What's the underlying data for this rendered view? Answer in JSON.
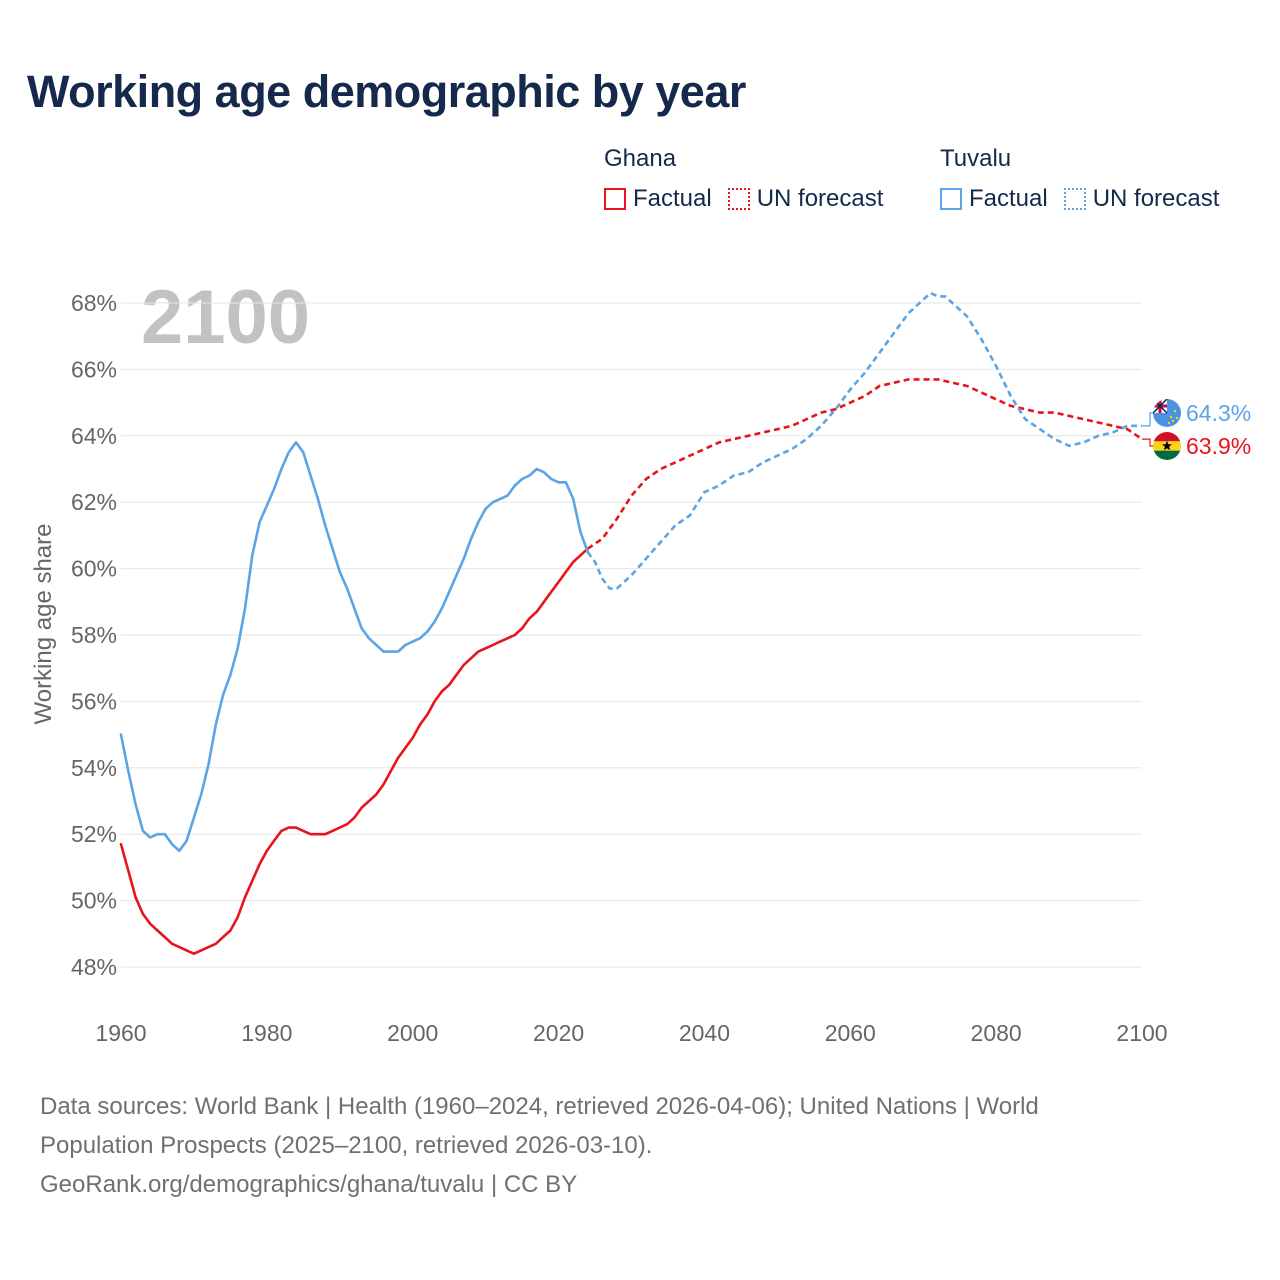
{
  "title": "Working age demographic by year",
  "year_label": "2100",
  "legend": {
    "groups": [
      {
        "country": "Ghana",
        "factual_label": "Factual",
        "forecast_label": "UN forecast",
        "color": "#e8141b"
      },
      {
        "country": "Tuvalu",
        "factual_label": "Factual",
        "forecast_label": "UN forecast",
        "color": "#5ba4e6"
      }
    ]
  },
  "source": {
    "line1": "Data sources: World Bank | Health (1960–2024, retrieved 2026-04-06); United Nations | World",
    "line2": "Population Prospects (2025–2100, retrieved 2026-03-10).",
    "line3": "GeoRank.org/demographics/ghana/tuvalu | CC BY"
  },
  "chart_data": {
    "type": "line",
    "title": "Working age demographic by year",
    "xlabel": "",
    "ylabel": "Working age share",
    "xlim": [
      1960,
      2100
    ],
    "ylim": [
      47,
      69
    ],
    "x_ticks": [
      1960,
      1980,
      2000,
      2020,
      2040,
      2060,
      2080,
      2100
    ],
    "x_tick_labels": [
      "1960",
      "1980",
      "2000",
      "2020",
      "2040",
      "2060",
      "2080",
      "2100"
    ],
    "y_ticks": [
      48,
      50,
      52,
      54,
      56,
      58,
      60,
      62,
      64,
      66,
      68
    ],
    "y_tick_labels": [
      "48%",
      "50%",
      "52%",
      "54%",
      "56%",
      "58%",
      "60%",
      "62%",
      "64%",
      "66%",
      "68%"
    ],
    "grid": true,
    "legend_position": "top-right",
    "series": [
      {
        "name": "Ghana",
        "color": "#e8141b",
        "end_label": "63.9%",
        "factual": {
          "x": [
            1960,
            1961,
            1962,
            1963,
            1964,
            1965,
            1966,
            1967,
            1968,
            1969,
            1970,
            1971,
            1972,
            1973,
            1974,
            1975,
            1976,
            1977,
            1978,
            1979,
            1980,
            1981,
            1982,
            1983,
            1984,
            1985,
            1986,
            1987,
            1988,
            1989,
            1990,
            1991,
            1992,
            1993,
            1994,
            1995,
            1996,
            1997,
            1998,
            1999,
            2000,
            2001,
            2002,
            2003,
            2004,
            2005,
            2006,
            2007,
            2008,
            2009,
            2010,
            2011,
            2012,
            2013,
            2014,
            2015,
            2016,
            2017,
            2018,
            2019,
            2020,
            2021,
            2022,
            2023,
            2024
          ],
          "y": [
            51.7,
            50.9,
            50.1,
            49.6,
            49.3,
            49.1,
            48.9,
            48.7,
            48.6,
            48.5,
            48.4,
            48.5,
            48.6,
            48.7,
            48.9,
            49.1,
            49.5,
            50.1,
            50.6,
            51.1,
            51.5,
            51.8,
            52.1,
            52.2,
            52.2,
            52.1,
            52.0,
            52.0,
            52.0,
            52.1,
            52.2,
            52.3,
            52.5,
            52.8,
            53.0,
            53.2,
            53.5,
            53.9,
            54.3,
            54.6,
            54.9,
            55.3,
            55.6,
            56.0,
            56.3,
            56.5,
            56.8,
            57.1,
            57.3,
            57.5,
            57.6,
            57.7,
            57.8,
            57.9,
            58.0,
            58.2,
            58.5,
            58.7,
            59.0,
            59.3,
            59.6,
            59.9,
            60.2,
            60.4,
            60.6
          ]
        },
        "forecast": {
          "x": [
            2024,
            2026,
            2028,
            2030,
            2032,
            2034,
            2036,
            2038,
            2040,
            2042,
            2044,
            2046,
            2048,
            2050,
            2052,
            2054,
            2056,
            2058,
            2060,
            2062,
            2064,
            2066,
            2068,
            2070,
            2072,
            2074,
            2076,
            2078,
            2080,
            2082,
            2084,
            2086,
            2088,
            2090,
            2092,
            2094,
            2096,
            2098,
            2100
          ],
          "y": [
            60.6,
            60.9,
            61.5,
            62.2,
            62.7,
            63.0,
            63.2,
            63.4,
            63.6,
            63.8,
            63.9,
            64.0,
            64.1,
            64.2,
            64.3,
            64.5,
            64.7,
            64.8,
            65.0,
            65.2,
            65.5,
            65.6,
            65.7,
            65.7,
            65.7,
            65.6,
            65.5,
            65.3,
            65.1,
            64.9,
            64.8,
            64.7,
            64.7,
            64.6,
            64.5,
            64.4,
            64.3,
            64.2,
            63.9
          ]
        }
      },
      {
        "name": "Tuvalu",
        "color": "#5ba4e6",
        "end_label": "64.3%",
        "factual": {
          "x": [
            1960,
            1961,
            1962,
            1963,
            1964,
            1965,
            1966,
            1967,
            1968,
            1969,
            1970,
            1971,
            1972,
            1973,
            1974,
            1975,
            1976,
            1977,
            1978,
            1979,
            1980,
            1981,
            1982,
            1983,
            1984,
            1985,
            1986,
            1987,
            1988,
            1989,
            1990,
            1991,
            1992,
            1993,
            1994,
            1995,
            1996,
            1997,
            1998,
            1999,
            2000,
            2001,
            2002,
            2003,
            2004,
            2005,
            2006,
            2007,
            2008,
            2009,
            2010,
            2011,
            2012,
            2013,
            2014,
            2015,
            2016,
            2017,
            2018,
            2019,
            2020,
            2021,
            2022,
            2023,
            2024
          ],
          "y": [
            55.0,
            53.9,
            52.9,
            52.1,
            51.9,
            52.0,
            52.0,
            51.7,
            51.5,
            51.8,
            52.5,
            53.2,
            54.1,
            55.3,
            56.2,
            56.8,
            57.6,
            58.8,
            60.4,
            61.4,
            61.9,
            62.4,
            63.0,
            63.5,
            63.8,
            63.5,
            62.8,
            62.1,
            61.3,
            60.6,
            59.9,
            59.4,
            58.8,
            58.2,
            57.9,
            57.7,
            57.5,
            57.5,
            57.5,
            57.7,
            57.8,
            57.9,
            58.1,
            58.4,
            58.8,
            59.3,
            59.8,
            60.3,
            60.9,
            61.4,
            61.8,
            62.0,
            62.1,
            62.2,
            62.5,
            62.7,
            62.8,
            63.0,
            62.9,
            62.7,
            62.6,
            62.6,
            62.1,
            61.1,
            60.5
          ]
        },
        "forecast": {
          "x": [
            2024,
            2025,
            2026,
            2027,
            2028,
            2030,
            2032,
            2034,
            2036,
            2038,
            2040,
            2042,
            2044,
            2046,
            2048,
            2050,
            2052,
            2054,
            2056,
            2058,
            2060,
            2062,
            2064,
            2066,
            2068,
            2070,
            2071,
            2072,
            2073,
            2074,
            2076,
            2078,
            2080,
            2082,
            2084,
            2086,
            2088,
            2090,
            2092,
            2094,
            2096,
            2098,
            2100
          ],
          "y": [
            60.5,
            60.2,
            59.7,
            59.4,
            59.4,
            59.8,
            60.3,
            60.8,
            61.3,
            61.6,
            62.3,
            62.5,
            62.8,
            62.9,
            63.2,
            63.4,
            63.6,
            63.9,
            64.3,
            64.8,
            65.4,
            65.9,
            66.5,
            67.1,
            67.7,
            68.1,
            68.3,
            68.2,
            68.2,
            68.0,
            67.6,
            66.9,
            66.1,
            65.2,
            64.5,
            64.2,
            63.9,
            63.7,
            63.8,
            64.0,
            64.1,
            64.3,
            64.3
          ]
        }
      }
    ]
  }
}
